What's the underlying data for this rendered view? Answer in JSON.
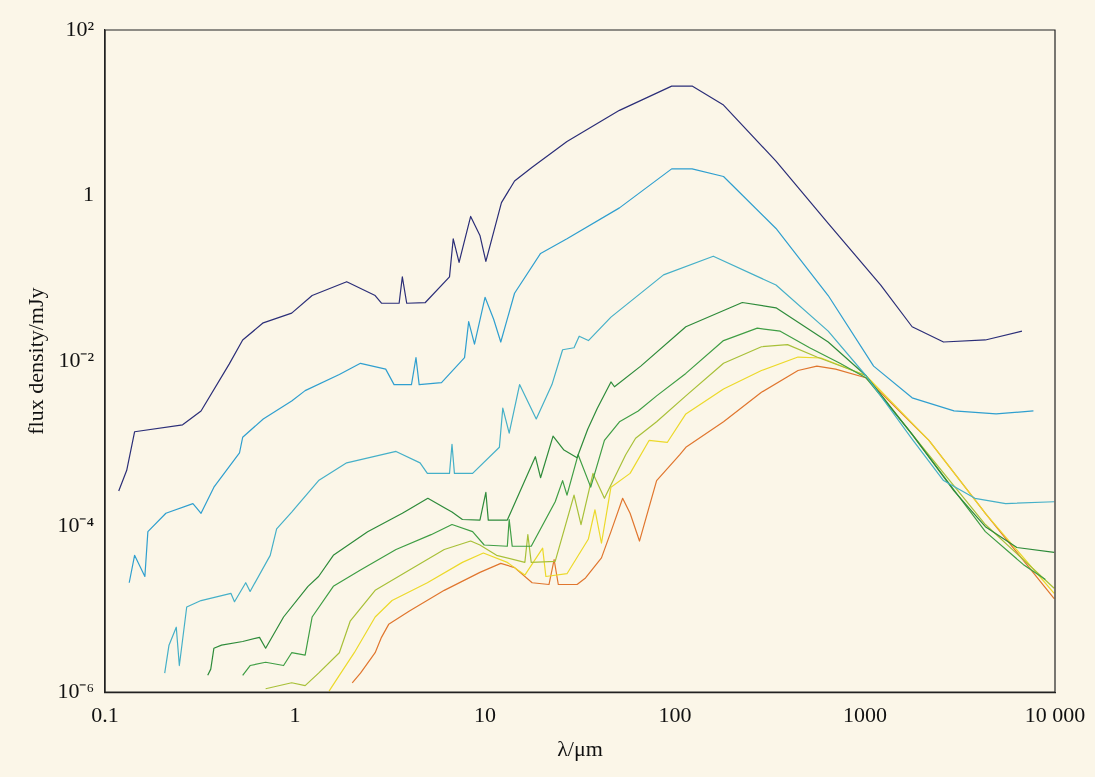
{
  "chart_data": {
    "type": "line",
    "xlabel": "λ/μm",
    "ylabel": "flux density/mJy",
    "log": "xy",
    "grid": false,
    "legend": false,
    "marker": "none",
    "line_style": "solid",
    "xlim": [
      0.1,
      10000
    ],
    "xticks": [
      0.1,
      1,
      10,
      100,
      1000,
      {
        "value": 10000,
        "label": "10 000"
      }
    ],
    "ylim": [
      1e-06,
      100
    ],
    "yticks": [
      {
        "value": 1e-06,
        "label": "10⁻⁶"
      },
      {
        "value": 0.0001,
        "label": "10⁻⁴"
      },
      {
        "value": 0.01,
        "label": "10⁻²"
      },
      1,
      {
        "value": 100,
        "label": "10²"
      }
    ],
    "series": [
      {
        "color": "#2b2e78",
        "x": [
          0.118,
          0.13,
          0.143,
          0.256,
          0.32,
          0.45,
          0.53,
          0.68,
          0.96,
          1.23,
          1.87,
          2.64,
          2.85,
          3.53,
          3.67,
          3.87,
          4.85,
          6.5,
          6.8,
          7.3,
          8.4,
          9.4,
          10.1,
          12.2,
          14.3,
          17.7,
          27,
          51,
          96,
          123,
          180,
          340,
          640,
          1210,
          1770,
          2590,
          4300,
          6700
        ],
        "values": [
          0.00027,
          0.00048,
          0.0014,
          0.0017,
          0.0025,
          0.0092,
          0.018,
          0.029,
          0.038,
          0.062,
          0.091,
          0.062,
          0.05,
          0.05,
          0.104,
          0.05,
          0.051,
          0.104,
          0.3,
          0.156,
          0.56,
          0.33,
          0.16,
          0.82,
          1.5,
          2.2,
          4.5,
          10.7,
          21,
          21,
          12.4,
          2.6,
          0.46,
          0.083,
          0.026,
          0.017,
          0.018,
          0.023
        ]
      },
      {
        "color": "#2f9fcf",
        "x": [
          0.134,
          0.143,
          0.162,
          0.168,
          0.209,
          0.29,
          0.32,
          0.374,
          0.51,
          0.53,
          0.68,
          0.96,
          1.13,
          1.71,
          2.21,
          3.0,
          3.32,
          4.1,
          4.33,
          4.5,
          5.9,
          7.8,
          8.2,
          8.8,
          10,
          11.1,
          12.1,
          14.3,
          19.6,
          27,
          51,
          96,
          123,
          180,
          340,
          640,
          1110,
          1770,
          2940,
          4900,
          7700
        ],
        "values": [
          2.1e-05,
          4.5e-05,
          2.5e-05,
          8.7e-05,
          0.000145,
          0.00019,
          0.000145,
          0.0003,
          0.00078,
          0.0012,
          0.002,
          0.0033,
          0.0044,
          0.0069,
          0.0094,
          0.008,
          0.0052,
          0.0052,
          0.011,
          0.0052,
          0.0055,
          0.011,
          0.03,
          0.016,
          0.059,
          0.032,
          0.017,
          0.066,
          0.2,
          0.3,
          0.71,
          2.1,
          2.1,
          1.7,
          0.4,
          0.062,
          0.0087,
          0.0036,
          0.0025,
          0.0023,
          0.0025
        ]
      },
      {
        "color": "#45b0c8",
        "x": [
          0.206,
          0.217,
          0.237,
          0.246,
          0.269,
          0.32,
          0.46,
          0.48,
          0.55,
          0.58,
          0.74,
          0.8,
          0.96,
          1.33,
          1.87,
          3.4,
          4.55,
          4.97,
          6.5,
          6.7,
          6.9,
          8.6,
          11.9,
          12.4,
          13.4,
          15.2,
          18.6,
          22.5,
          25.6,
          29.4,
          31.3,
          35,
          46,
          87,
          159,
          340,
          640,
          1010,
          1770,
          2590,
          3790,
          5500,
          9900
        ],
        "values": [
          1.7e-06,
          3.7e-06,
          6.1e-06,
          2.1e-06,
          1.07e-05,
          1.28e-05,
          1.56e-05,
          1.24e-05,
          2.1e-05,
          1.65e-05,
          4.5e-05,
          9.4e-05,
          0.00015,
          0.00036,
          0.00059,
          0.00081,
          0.00059,
          0.00044,
          0.00044,
          0.00099,
          0.00044,
          0.00044,
          0.00091,
          0.0027,
          0.00135,
          0.0052,
          0.002,
          0.0052,
          0.0137,
          0.0145,
          0.02,
          0.0177,
          0.034,
          0.11,
          0.185,
          0.083,
          0.023,
          0.0067,
          0.00114,
          0.00036,
          0.00022,
          0.00019,
          0.0002
        ]
      },
      {
        "color": "#2e8b3a",
        "x": [
          0.347,
          0.36,
          0.374,
          0.41,
          0.53,
          0.65,
          0.7,
          0.87,
          1.17,
          1.33,
          1.59,
          2.41,
          3.67,
          5.0,
          6.7,
          7.6,
          9.4,
          10.1,
          10.4,
          13.1,
          18.4,
          19.6,
          22.8,
          25.9,
          30.5,
          34.7,
          39,
          46,
          48,
          66,
          114,
          226,
          340,
          640,
          1010,
          1770,
          2940,
          4300,
          6300,
          9900
        ],
        "values": [
          1.6e-06,
          1.9e-06,
          3.4e-06,
          3.7e-06,
          4.1e-06,
          4.6e-06,
          3.4e-06,
          8.1e-06,
          1.9e-05,
          2.5e-05,
          4.5e-05,
          8.7e-05,
          0.000145,
          0.00022,
          0.00015,
          0.000122,
          0.00012,
          0.00026,
          0.00012,
          0.00012,
          0.0007,
          0.00039,
          0.00124,
          0.00085,
          0.00068,
          0.0015,
          0.0027,
          0.0056,
          0.0049,
          0.0087,
          0.026,
          0.051,
          0.044,
          0.017,
          0.0067,
          0.0013,
          0.00027,
          0.0001,
          5.6e-05,
          4.9e-05
        ]
      },
      {
        "color": "#3f9e44",
        "x": [
          0.53,
          0.58,
          0.7,
          0.87,
          0.96,
          1.13,
          1.23,
          1.59,
          2.21,
          3.4,
          5.2,
          6.7,
          8.6,
          9.9,
          13.1,
          13.4,
          13.9,
          17.5,
          23.4,
          25.6,
          27,
          30.9,
          36,
          42.5,
          51,
          64,
          80,
          114,
          180,
          271,
          358,
          511,
          738,
          1010,
          1750,
          4300,
          6800,
          8900
        ],
        "values": [
          1.6e-06,
          2.1e-06,
          2.3e-06,
          2.1e-06,
          3e-06,
          2.8e-06,
          8.1e-06,
          1.9e-05,
          3e-05,
          5.3e-05,
          8e-05,
          0.000106,
          8.7e-05,
          6e-05,
          5.8e-05,
          0.000122,
          5.8e-05,
          5.8e-05,
          0.0002,
          0.00036,
          0.00024,
          0.00074,
          0.0003,
          0.0011,
          0.00185,
          0.0025,
          0.0038,
          0.0071,
          0.0177,
          0.025,
          0.023,
          0.0145,
          0.0094,
          0.0063,
          0.00135,
          8.7e-05,
          3.5e-05,
          2.3e-05
        ]
      },
      {
        "color": "#a8c038",
        "x": [
          0.7,
          0.96,
          1.13,
          1.33,
          1.71,
          1.95,
          2.64,
          4.0,
          6.1,
          8.4,
          9.4,
          11.5,
          16.2,
          16.8,
          17.5,
          23.4,
          29.4,
          32,
          37,
          42.5,
          55,
          62,
          80,
          114,
          180,
          285,
          391,
          558,
          1010,
          1750,
          4300,
          9900
        ],
        "values": [
          1.1e-06,
          1.3e-06,
          1.2e-06,
          1.7e-06,
          3e-06,
          7.2e-06,
          1.7e-05,
          3e-05,
          5.3e-05,
          6.7e-05,
          6e-05,
          4.5e-05,
          3.7e-05,
          8e-05,
          3.7e-05,
          3.8e-05,
          0.00024,
          0.000106,
          0.00044,
          0.00022,
          0.00074,
          0.00117,
          0.00185,
          0.0038,
          0.0094,
          0.0149,
          0.0158,
          0.0112,
          0.0067,
          0.00135,
          0.000106,
          1.8e-05
        ]
      },
      {
        "color": "#ecd92a",
        "x": [
          1.51,
          1.71,
          2.05,
          2.64,
          3.24,
          4.97,
          7.6,
          9.8,
          13.1,
          16.2,
          20.1,
          20.9,
          27,
          35,
          37.9,
          41,
          46,
          58,
          73,
          91,
          114,
          180,
          285,
          444,
          588,
          1010,
          2170,
          4300,
          9900
        ],
        "values": [
          1.03e-06,
          1.6e-06,
          3e-06,
          8.1e-06,
          1.28e-05,
          2.1e-05,
          3.7e-05,
          4.8e-05,
          3.7e-05,
          2.6e-05,
          5.5e-05,
          2.5e-05,
          2.7e-05,
          7.1e-05,
          0.00016,
          6.3e-05,
          0.0003,
          0.00044,
          0.0011,
          0.00104,
          0.0023,
          0.0046,
          0.0077,
          0.0112,
          0.0109,
          0.0067,
          0.0011,
          0.000145,
          1.56e-05
        ]
      },
      {
        "color": "#e0762e",
        "x": [
          2.0,
          2.21,
          2.64,
          2.85,
          3.11,
          4.0,
          6.1,
          9.4,
          12.1,
          14.3,
          17.7,
          21.7,
          23.1,
          24.3,
          30.5,
          33.8,
          41,
          46,
          53,
          58,
          65,
          80,
          106,
          114,
          180,
          285,
          444,
          558,
          700,
          1010,
          2170,
          4300,
          9900
        ],
        "values": [
          1.3e-06,
          1.7e-06,
          3e-06,
          4.6e-06,
          6.6e-06,
          9.6e-06,
          1.7e-05,
          2.8e-05,
          3.6e-05,
          3.2e-05,
          2.1e-05,
          2e-05,
          4e-05,
          2e-05,
          2e-05,
          2.4e-05,
          4.2e-05,
          8.7e-05,
          0.00022,
          0.000145,
          6.7e-05,
          0.00036,
          0.00074,
          0.00091,
          0.00185,
          0.0042,
          0.0077,
          0.0087,
          0.008,
          0.0063,
          0.0011,
          0.000145,
          1.35e-05
        ]
      }
    ]
  }
}
